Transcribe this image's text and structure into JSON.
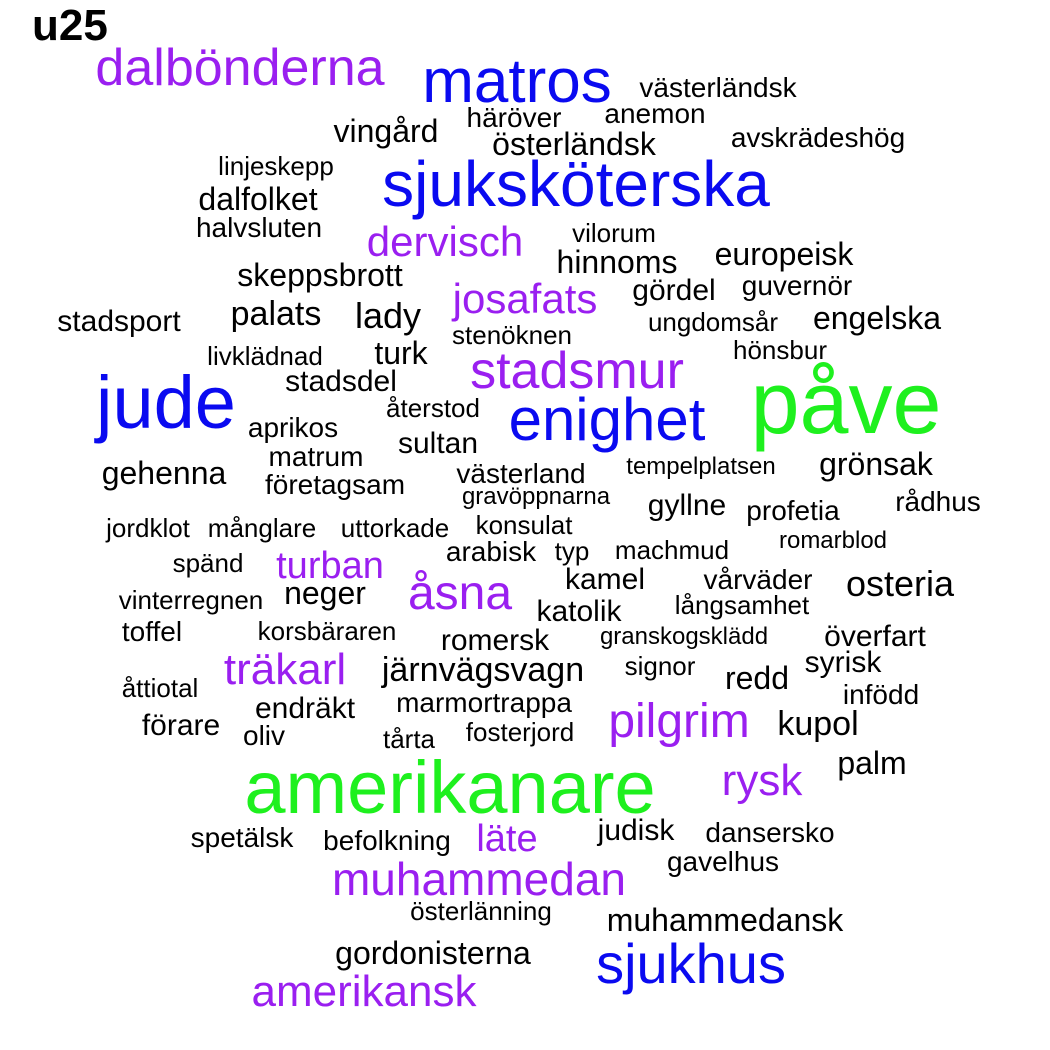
{
  "title": "u25",
  "colors": {
    "black": "#000000",
    "purple": "#9a1ff0",
    "blue": "#0a0af0",
    "green": "#1ef01e"
  },
  "words": [
    {
      "text": "dalbönderna",
      "color": "purple"
    },
    {
      "text": "matros",
      "color": "blue"
    },
    {
      "text": "västerländsk",
      "color": "black"
    },
    {
      "text": "anemon",
      "color": "black"
    },
    {
      "text": "häröver",
      "color": "black"
    },
    {
      "text": "vingård",
      "color": "black"
    },
    {
      "text": "avskrädeshög",
      "color": "black"
    },
    {
      "text": "österländsk",
      "color": "black"
    },
    {
      "text": "linjeskepp",
      "color": "black"
    },
    {
      "text": "sjuksköterska",
      "color": "blue"
    },
    {
      "text": "dalfolket",
      "color": "black"
    },
    {
      "text": "halvsluten",
      "color": "black"
    },
    {
      "text": "dervisch",
      "color": "purple"
    },
    {
      "text": "vilorum",
      "color": "black"
    },
    {
      "text": "europeisk",
      "color": "black"
    },
    {
      "text": "hinnoms",
      "color": "black"
    },
    {
      "text": "skeppsbrott",
      "color": "black"
    },
    {
      "text": "guvernör",
      "color": "black"
    },
    {
      "text": "gördel",
      "color": "black"
    },
    {
      "text": "josafats",
      "color": "purple"
    },
    {
      "text": "palats",
      "color": "black"
    },
    {
      "text": "lady",
      "color": "black"
    },
    {
      "text": "stadsport",
      "color": "black"
    },
    {
      "text": "engelska",
      "color": "black"
    },
    {
      "text": "ungdomsår",
      "color": "black"
    },
    {
      "text": "stenöknen",
      "color": "black"
    },
    {
      "text": "hönsbur",
      "color": "black"
    },
    {
      "text": "livklädnad",
      "color": "black"
    },
    {
      "text": "turk",
      "color": "black"
    },
    {
      "text": "stadsmur",
      "color": "purple"
    },
    {
      "text": "stadsdel",
      "color": "black"
    },
    {
      "text": "jude",
      "color": "blue"
    },
    {
      "text": "påve",
      "color": "green"
    },
    {
      "text": "återstod",
      "color": "black"
    },
    {
      "text": "enighet",
      "color": "blue"
    },
    {
      "text": "aprikos",
      "color": "black"
    },
    {
      "text": "sultan",
      "color": "black"
    },
    {
      "text": "matrum",
      "color": "black"
    },
    {
      "text": "gehenna",
      "color": "black"
    },
    {
      "text": "västerland",
      "color": "black"
    },
    {
      "text": "tempelplatsen",
      "color": "black"
    },
    {
      "text": "grönsak",
      "color": "black"
    },
    {
      "text": "företagsam",
      "color": "black"
    },
    {
      "text": "gravöppnarna",
      "color": "black"
    },
    {
      "text": "gyllne",
      "color": "black"
    },
    {
      "text": "rådhus",
      "color": "black"
    },
    {
      "text": "profetia",
      "color": "black"
    },
    {
      "text": "jordklot",
      "color": "black"
    },
    {
      "text": "månglare",
      "color": "black"
    },
    {
      "text": "uttorkade",
      "color": "black"
    },
    {
      "text": "konsulat",
      "color": "black"
    },
    {
      "text": "romarblod",
      "color": "black"
    },
    {
      "text": "arabisk",
      "color": "black"
    },
    {
      "text": "typ",
      "color": "black"
    },
    {
      "text": "machmud",
      "color": "black"
    },
    {
      "text": "spänd",
      "color": "black"
    },
    {
      "text": "turban",
      "color": "purple"
    },
    {
      "text": "kamel",
      "color": "black"
    },
    {
      "text": "vårväder",
      "color": "black"
    },
    {
      "text": "osteria",
      "color": "black"
    },
    {
      "text": "åsna",
      "color": "purple"
    },
    {
      "text": "neger",
      "color": "black"
    },
    {
      "text": "vinterregnen",
      "color": "black"
    },
    {
      "text": "katolik",
      "color": "black"
    },
    {
      "text": "långsamhet",
      "color": "black"
    },
    {
      "text": "toffel",
      "color": "black"
    },
    {
      "text": "korsbäraren",
      "color": "black"
    },
    {
      "text": "romersk",
      "color": "black"
    },
    {
      "text": "granskogsklädd",
      "color": "black"
    },
    {
      "text": "överfart",
      "color": "black"
    },
    {
      "text": "träkarl",
      "color": "purple"
    },
    {
      "text": "järnvägsvagn",
      "color": "black"
    },
    {
      "text": "signor",
      "color": "black"
    },
    {
      "text": "syrisk",
      "color": "black"
    },
    {
      "text": "redd",
      "color": "black"
    },
    {
      "text": "åttiotal",
      "color": "black"
    },
    {
      "text": "infödd",
      "color": "black"
    },
    {
      "text": "marmortrappa",
      "color": "black"
    },
    {
      "text": "endräkt",
      "color": "black"
    },
    {
      "text": "pilgrim",
      "color": "purple"
    },
    {
      "text": "kupol",
      "color": "black"
    },
    {
      "text": "förare",
      "color": "black"
    },
    {
      "text": "oliv",
      "color": "black"
    },
    {
      "text": "tårta",
      "color": "black"
    },
    {
      "text": "fosterjord",
      "color": "black"
    },
    {
      "text": "palm",
      "color": "black"
    },
    {
      "text": "amerikanare",
      "color": "green"
    },
    {
      "text": "rysk",
      "color": "purple"
    },
    {
      "text": "spetälsk",
      "color": "black"
    },
    {
      "text": "befolkning",
      "color": "black"
    },
    {
      "text": "läte",
      "color": "purple"
    },
    {
      "text": "judisk",
      "color": "black"
    },
    {
      "text": "dansersko",
      "color": "black"
    },
    {
      "text": "gavelhus",
      "color": "black"
    },
    {
      "text": "muhammedan",
      "color": "purple"
    },
    {
      "text": "österlänning",
      "color": "black"
    },
    {
      "text": "muhammedansk",
      "color": "black"
    },
    {
      "text": "gordonisterna",
      "color": "black"
    },
    {
      "text": "sjukhus",
      "color": "blue"
    },
    {
      "text": "amerikansk",
      "color": "purple"
    }
  ]
}
